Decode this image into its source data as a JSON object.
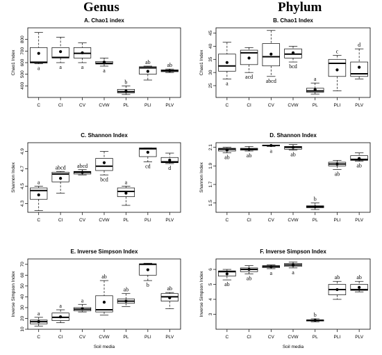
{
  "headings": {
    "left": "Genus",
    "right": "Phylum"
  },
  "chart_data": [
    {
      "type": "boxplot",
      "title": "A. Chao1 index",
      "ylabel": "Chao1 Index",
      "xlabel": "",
      "ylim": [
        300,
        900
      ],
      "yticks": [
        400,
        500,
        600,
        700,
        800
      ],
      "categories": [
        "C",
        "CI",
        "CV",
        "CVW",
        "PL",
        "PLI",
        "PLV"
      ],
      "boxes": [
        {
          "min": 590,
          "q1": 597,
          "median": 604,
          "q3": 730,
          "max": 860,
          "mean": 680,
          "letter": "a"
        },
        {
          "min": 600,
          "q1": 640,
          "median": 645,
          "q3": 730,
          "max": 820,
          "mean": 695,
          "letter": "a"
        },
        {
          "min": 600,
          "q1": 640,
          "median": 680,
          "q3": 730,
          "max": 770,
          "mean": 685,
          "letter": "a"
        },
        {
          "min": 570,
          "q1": 588,
          "median": 595,
          "q3": 610,
          "max": 640,
          "mean": 605,
          "letter": "a"
        },
        {
          "min": 325,
          "q1": 340,
          "median": 350,
          "q3": 370,
          "max": 400,
          "mean": 355,
          "letter": "b"
        },
        {
          "min": 450,
          "q1": 500,
          "median": 555,
          "q3": 565,
          "max": 570,
          "mean": 525,
          "letter": "ab"
        },
        {
          "min": 515,
          "q1": 522,
          "median": 530,
          "q3": 538,
          "max": 545,
          "mean": 530,
          "letter": "ab"
        }
      ]
    },
    {
      "type": "boxplot",
      "title": "B. Chao1 Index",
      "ylabel": "Chao1 Index",
      "xlabel": "",
      "ylim": [
        20.5,
        47
      ],
      "yticks": [
        25,
        30,
        35,
        40,
        45
      ],
      "categories": [
        "C",
        "CI",
        "CV",
        "CVW",
        "PL",
        "PLI",
        "PLV"
      ],
      "boxes": [
        {
          "min": 27.5,
          "q1": 30.5,
          "median": 32.5,
          "q3": 37,
          "max": 41.5,
          "mean": 33.8,
          "letter": "a"
        },
        {
          "min": 30,
          "q1": 33,
          "median": 37.5,
          "q3": 38.5,
          "max": 39.5,
          "mean": 35.5,
          "letter": "acd"
        },
        {
          "min": 28.5,
          "q1": 32.5,
          "median": 36,
          "q3": 41,
          "max": 46,
          "mean": 37,
          "letter": "abcd"
        },
        {
          "min": 34,
          "q1": 35.5,
          "median": 37,
          "q3": 39,
          "max": 40,
          "mean": 37.5,
          "letter": "bcd"
        },
        {
          "min": 21.8,
          "q1": 22.5,
          "median": 23,
          "q3": 24,
          "max": 26,
          "mean": 23.5,
          "letter": "a"
        },
        {
          "min": 23,
          "q1": 28.5,
          "median": 33.5,
          "q3": 35,
          "max": 36.5,
          "mean": 31,
          "letter": "c"
        },
        {
          "min": 27.5,
          "q1": 28.5,
          "median": 29.5,
          "q3": 34,
          "max": 39,
          "mean": 32,
          "letter": "d"
        }
      ]
    },
    {
      "type": "boxplot",
      "title": "C. Shannon Index",
      "ylabel": "Shannon Index",
      "xlabel": "",
      "ylim": [
        4.2,
        5.0
      ],
      "yticks": [
        4.3,
        4.5,
        4.7,
        4.9
      ],
      "categories": [
        "C",
        "CI",
        "CV",
        "CVW",
        "PL",
        "PLI",
        "PLV"
      ],
      "boxes": [
        {
          "min": 4.22,
          "q1": 4.35,
          "median": 4.45,
          "q3": 4.48,
          "max": 4.5,
          "mean": 4.4,
          "letter": "a"
        },
        {
          "min": 4.42,
          "q1": 4.55,
          "median": 4.64,
          "q3": 4.66,
          "max": 4.67,
          "mean": 4.59,
          "letter": "abcd"
        },
        {
          "min": 4.63,
          "q1": 4.64,
          "median": 4.66,
          "q3": 4.67,
          "max": 4.69,
          "mean": 4.66,
          "letter": "abcd"
        },
        {
          "min": 4.63,
          "q1": 4.68,
          "median": 4.73,
          "q3": 4.82,
          "max": 4.9,
          "mean": 4.77,
          "letter": "bcd"
        },
        {
          "min": 4.28,
          "q1": 4.38,
          "median": 4.44,
          "q3": 4.48,
          "max": 4.5,
          "mean": 4.42,
          "letter": "a"
        },
        {
          "min": 4.78,
          "q1": 4.84,
          "median": 4.93,
          "q3": 4.94,
          "max": 4.94,
          "mean": 4.89,
          "letter": "cd"
        },
        {
          "min": 4.76,
          "q1": 4.77,
          "median": 4.78,
          "q3": 4.83,
          "max": 4.88,
          "mean": 4.8,
          "letter": "d"
        }
      ]
    },
    {
      "type": "boxplot",
      "title": "D. Shannon Index",
      "ylabel": "Shannon Index",
      "xlabel": "",
      "ylim": [
        1.4,
        2.15
      ],
      "yticks": [
        1.5,
        1.7,
        1.9,
        2.1
      ],
      "categories": [
        "C",
        "CI",
        "CV",
        "CVW",
        "PL",
        "PLI",
        "PLV"
      ],
      "boxes": [
        {
          "min": 2.04,
          "q1": 2.06,
          "median": 2.08,
          "q3": 2.09,
          "max": 2.1,
          "mean": 2.07,
          "letter": "ab"
        },
        {
          "min": 2.06,
          "q1": 2.07,
          "median": 2.08,
          "q3": 2.09,
          "max": 2.11,
          "mean": 2.08,
          "letter": "ab"
        },
        {
          "min": 2.11,
          "q1": 2.115,
          "median": 2.12,
          "q3": 2.125,
          "max": 2.125,
          "mean": 2.12,
          "letter": "a"
        },
        {
          "min": 2.07,
          "q1": 2.08,
          "median": 2.1,
          "q3": 2.11,
          "max": 2.13,
          "mean": 2.1,
          "letter": "ab"
        },
        {
          "min": 1.43,
          "q1": 1.45,
          "median": 1.46,
          "q3": 1.47,
          "max": 1.5,
          "mean": 1.46,
          "letter": "b"
        },
        {
          "min": 1.86,
          "q1": 1.9,
          "median": 1.92,
          "q3": 1.94,
          "max": 1.96,
          "mean": 1.92,
          "letter": "ab"
        },
        {
          "min": 1.95,
          "q1": 1.96,
          "median": 1.97,
          "q3": 2.01,
          "max": 2.04,
          "mean": 1.98,
          "letter": "ab"
        }
      ]
    },
    {
      "type": "boxplot",
      "title": "E. Inverse Simpson Index",
      "ylabel": "Inverse Simpson Index",
      "xlabel": "Soil media",
      "ylim": [
        10,
        75
      ],
      "yticks": [
        10,
        20,
        30,
        40,
        50,
        60,
        70
      ],
      "categories": [
        "C",
        "CI",
        "CV",
        "CVW",
        "PL",
        "PLI",
        "PLV"
      ],
      "boxes": [
        {
          "min": 13,
          "q1": 15,
          "median": 17,
          "q3": 18.5,
          "max": 21,
          "mean": 17,
          "letter": "a"
        },
        {
          "min": 16,
          "q1": 18,
          "median": 21,
          "q3": 25,
          "max": 28,
          "mean": 21.5,
          "letter": "a"
        },
        {
          "min": 26,
          "q1": 27,
          "median": 28.5,
          "q3": 30,
          "max": 33,
          "mean": 29,
          "letter": "a"
        },
        {
          "min": 23,
          "q1": 26,
          "median": 28,
          "q3": 41,
          "max": 55,
          "mean": 35,
          "letter": "ab"
        },
        {
          "min": 31,
          "q1": 34,
          "median": 36,
          "q3": 38,
          "max": 43,
          "mean": 36,
          "letter": "ab"
        },
        {
          "min": 55,
          "q1": 60,
          "median": 70,
          "q3": 70.5,
          "max": 71,
          "mean": 65,
          "letter": "b"
        },
        {
          "min": 29,
          "q1": 36,
          "median": 40,
          "q3": 43,
          "max": 44,
          "mean": 39,
          "letter": "ab"
        }
      ]
    },
    {
      "type": "boxplot",
      "title": "F. Inverse Simpson Index",
      "ylabel": "Inverse Simpson Index",
      "xlabel": "Soil media",
      "ylim": [
        2.0,
        6.7
      ],
      "yticks": [
        3,
        4,
        5,
        6
      ],
      "categories": [
        "C",
        "CI",
        "CV",
        "CVW",
        "PL",
        "PLI",
        "PLV"
      ],
      "boxes": [
        {
          "min": 5.3,
          "q1": 5.55,
          "median": 5.85,
          "q3": 5.9,
          "max": 6.0,
          "mean": 5.7,
          "letter": "ab"
        },
        {
          "min": 5.7,
          "q1": 5.85,
          "median": 6.0,
          "q3": 6.1,
          "max": 6.25,
          "mean": 6.0,
          "letter": "ab"
        },
        {
          "min": 6.05,
          "q1": 6.12,
          "median": 6.2,
          "q3": 6.25,
          "max": 6.3,
          "mean": 6.18,
          "letter": "a"
        },
        {
          "min": 6.1,
          "q1": 6.2,
          "median": 6.3,
          "q3": 6.4,
          "max": 6.5,
          "mean": 6.3,
          "letter": "a"
        },
        {
          "min": 2.5,
          "q1": 2.55,
          "median": 2.6,
          "q3": 2.62,
          "max": 2.7,
          "mean": 2.6,
          "letter": "b"
        },
        {
          "min": 4.0,
          "q1": 4.3,
          "median": 4.65,
          "q3": 5.0,
          "max": 5.2,
          "mean": 4.65,
          "letter": "ab"
        },
        {
          "min": 4.5,
          "q1": 4.6,
          "median": 4.65,
          "q3": 5.0,
          "max": 5.2,
          "mean": 4.8,
          "letter": "ab"
        }
      ]
    }
  ]
}
